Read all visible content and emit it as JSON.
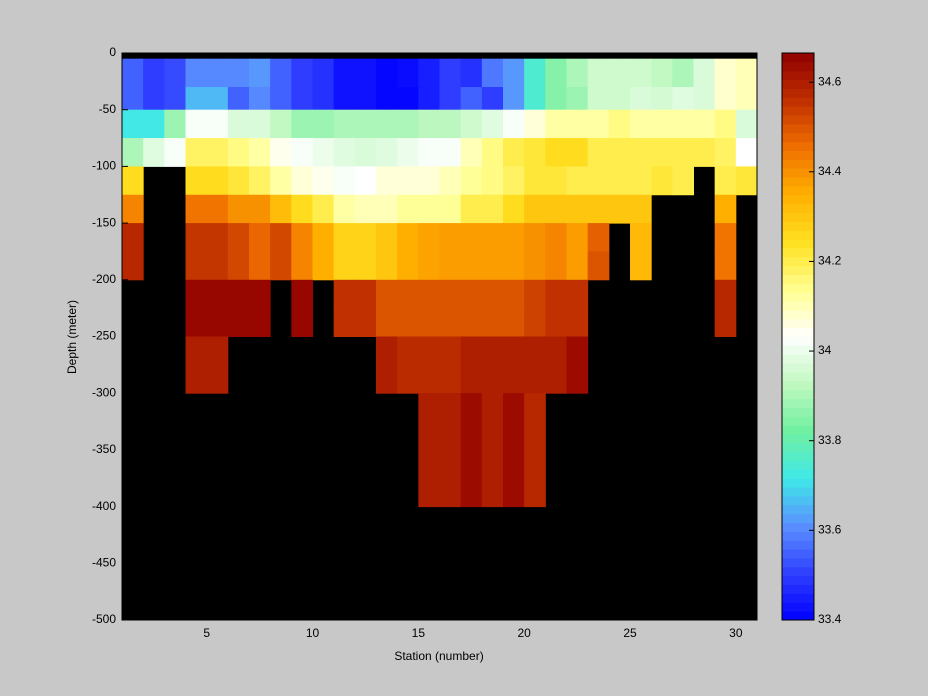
{
  "chart_data": {
    "type": "heatmap",
    "xlabel": "Station (number)",
    "ylabel": "Depth (meter)",
    "xlim": [
      1,
      31
    ],
    "ylim": [
      -500,
      0
    ],
    "xticks": [
      5,
      10,
      15,
      20,
      25,
      30
    ],
    "yticks": [
      0,
      -50,
      -100,
      -150,
      -200,
      -250,
      -300,
      -350,
      -400,
      -450,
      -500
    ],
    "x_edges": [
      1,
      2,
      3,
      4,
      5,
      6,
      7,
      8,
      9,
      10,
      11,
      12,
      13,
      14,
      15,
      16,
      17,
      18,
      19,
      20,
      21,
      22,
      23,
      24,
      25,
      26,
      27,
      28,
      29,
      30,
      31
    ],
    "y_edges": [
      -5,
      -30,
      -50,
      -75,
      -100,
      -125,
      -150,
      -175,
      -200,
      -225,
      -250,
      -275,
      -300,
      -325,
      -350,
      -375,
      -400
    ],
    "z": [
      [
        33.55,
        33.5,
        33.52,
        33.6,
        33.6,
        33.6,
        33.62,
        33.55,
        33.5,
        33.48,
        33.43,
        33.43,
        33.41,
        33.42,
        33.45,
        33.5,
        33.48,
        33.58,
        33.62,
        33.75,
        33.85,
        33.9,
        33.95,
        33.95,
        33.95,
        33.93,
        33.9,
        33.97,
        34.08,
        34.1
      ],
      [
        33.55,
        33.5,
        33.52,
        33.66,
        33.66,
        33.55,
        33.6,
        33.55,
        33.5,
        33.48,
        33.43,
        33.43,
        33.41,
        33.41,
        33.45,
        33.5,
        33.55,
        33.5,
        33.62,
        33.75,
        33.85,
        33.88,
        33.95,
        33.95,
        33.97,
        33.96,
        33.98,
        33.97,
        34.08,
        34.1
      ],
      [
        33.72,
        33.72,
        33.88,
        34.02,
        34.02,
        33.97,
        33.97,
        33.93,
        33.88,
        33.88,
        33.9,
        33.9,
        33.9,
        33.9,
        33.92,
        33.92,
        33.95,
        33.98,
        34.02,
        34.07,
        34.12,
        34.12,
        34.12,
        34.15,
        34.12,
        34.12,
        34.12,
        34.12,
        34.15,
        33.97
      ],
      [
        33.9,
        33.98,
        34.02,
        34.18,
        34.18,
        34.15,
        34.12,
        34.05,
        34.02,
        34.0,
        33.98,
        33.97,
        33.98,
        34.0,
        34.02,
        34.02,
        34.1,
        34.15,
        34.2,
        34.22,
        34.25,
        34.25,
        34.2,
        34.2,
        34.2,
        34.2,
        34.2,
        34.2,
        34.18,
        34.03
      ],
      [
        34.25,
        null,
        null,
        34.25,
        34.25,
        34.22,
        34.18,
        34.12,
        34.07,
        34.05,
        34.02,
        34.03,
        34.07,
        34.07,
        34.07,
        34.1,
        34.13,
        34.15,
        34.18,
        34.22,
        34.22,
        34.2,
        34.2,
        34.2,
        34.2,
        34.22,
        34.2,
        null,
        34.2,
        34.22
      ],
      [
        34.42,
        null,
        null,
        34.45,
        34.45,
        34.4,
        34.4,
        34.32,
        34.25,
        34.2,
        34.12,
        34.1,
        34.1,
        34.13,
        34.13,
        34.13,
        34.2,
        34.2,
        34.25,
        34.3,
        34.3,
        34.3,
        34.3,
        34.3,
        34.3,
        null,
        null,
        null,
        34.35,
        null
      ],
      [
        34.58,
        null,
        null,
        34.55,
        34.55,
        34.52,
        34.47,
        34.52,
        34.42,
        34.35,
        34.27,
        34.27,
        34.3,
        34.35,
        34.37,
        34.38,
        34.38,
        34.38,
        34.38,
        34.4,
        34.42,
        34.38,
        34.48,
        null,
        34.33,
        null,
        null,
        null,
        34.45,
        null
      ],
      [
        34.58,
        null,
        null,
        34.55,
        34.55,
        34.52,
        34.47,
        34.52,
        34.42,
        34.35,
        34.27,
        34.27,
        34.3,
        34.35,
        34.37,
        34.38,
        34.38,
        34.38,
        34.38,
        34.4,
        34.42,
        34.38,
        34.5,
        null,
        34.33,
        null,
        null,
        null,
        34.45,
        null
      ],
      [
        null,
        null,
        null,
        34.65,
        34.65,
        34.65,
        34.65,
        null,
        34.65,
        null,
        34.56,
        34.56,
        34.5,
        34.5,
        34.5,
        34.5,
        34.5,
        34.5,
        34.5,
        34.53,
        34.56,
        34.56,
        null,
        null,
        null,
        null,
        null,
        null,
        34.58,
        null
      ],
      [
        null,
        null,
        null,
        34.65,
        34.65,
        34.65,
        34.65,
        null,
        34.65,
        null,
        34.56,
        34.56,
        34.5,
        34.5,
        34.5,
        34.5,
        34.5,
        34.5,
        34.5,
        34.53,
        34.56,
        34.56,
        null,
        null,
        null,
        null,
        null,
        null,
        34.58,
        null
      ],
      [
        null,
        null,
        null,
        34.6,
        34.6,
        null,
        null,
        null,
        null,
        null,
        null,
        null,
        34.6,
        34.57,
        34.57,
        34.57,
        34.6,
        34.6,
        34.6,
        34.6,
        34.6,
        34.64,
        null,
        null,
        null,
        null,
        null,
        null,
        null,
        null
      ],
      [
        null,
        null,
        null,
        34.6,
        34.6,
        null,
        null,
        null,
        null,
        null,
        null,
        null,
        34.6,
        34.57,
        34.57,
        34.57,
        34.6,
        34.6,
        34.6,
        34.6,
        34.6,
        34.64,
        null,
        null,
        null,
        null,
        null,
        null,
        null,
        null
      ],
      [
        null,
        null,
        null,
        null,
        null,
        null,
        null,
        null,
        null,
        null,
        null,
        null,
        null,
        null,
        34.6,
        34.6,
        34.64,
        34.6,
        34.64,
        34.58,
        null,
        null,
        null,
        null,
        null,
        null,
        null,
        null,
        null,
        null
      ],
      [
        null,
        null,
        null,
        null,
        null,
        null,
        null,
        null,
        null,
        null,
        null,
        null,
        null,
        null,
        34.6,
        34.6,
        34.64,
        34.6,
        34.64,
        34.58,
        null,
        null,
        null,
        null,
        null,
        null,
        null,
        null,
        null,
        null
      ],
      [
        null,
        null,
        null,
        null,
        null,
        null,
        null,
        null,
        null,
        null,
        null,
        null,
        null,
        null,
        34.6,
        34.6,
        34.64,
        34.6,
        34.64,
        34.58,
        null,
        null,
        null,
        null,
        null,
        null,
        null,
        null,
        null,
        null
      ],
      [
        null,
        null,
        null,
        null,
        null,
        null,
        null,
        null,
        null,
        null,
        null,
        null,
        null,
        null,
        34.6,
        34.6,
        34.64,
        34.6,
        34.64,
        34.58,
        null,
        null,
        null,
        null,
        null,
        null,
        null,
        null,
        null,
        null
      ]
    ],
    "clim": [
      33.4,
      34.665
    ],
    "cticks": [
      33.4,
      33.6,
      33.8,
      34,
      34.2,
      34.4,
      34.6
    ],
    "colormap": [
      "#0000ff",
      "#3040ff",
      "#5a90ff",
      "#40e8e8",
      "#70f0a0",
      "#c0f8c0",
      "#ffffff",
      "#ffff90",
      "#ffe020",
      "#ffb000",
      "#f07000",
      "#c03000",
      "#900000"
    ],
    "background": "#000000"
  }
}
